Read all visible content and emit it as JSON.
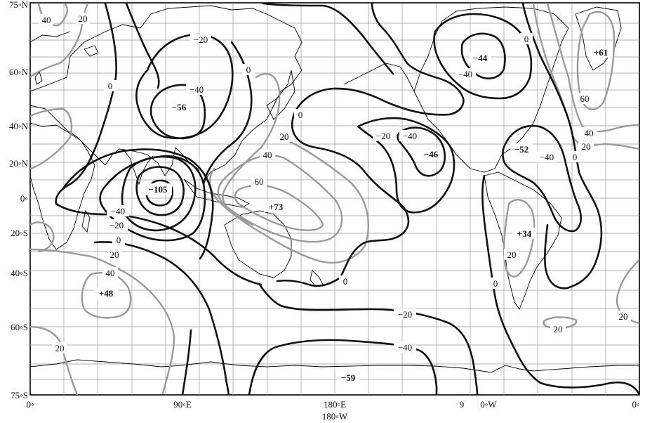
{
  "axes": {
    "y_ticks": [
      "75◦N",
      "60◦N",
      "40◦N",
      "20◦N",
      "0◦",
      "20◦S",
      "40◦S",
      "60◦S",
      "75◦S"
    ],
    "x_ticks": [
      "0◦",
      "90◦E",
      "180◦E",
      "9",
      "0◦W",
      "0◦"
    ],
    "x_sub_tick": "180◦W"
  },
  "contour_labels": {
    "l40_nw": "40",
    "l20_nw": "20",
    "lm20_asia": "−20",
    "l0_asia": "0",
    "lm40_siberia": "−40",
    "l0_pacn": "0",
    "l0_japan": "0",
    "l20_japan": "20",
    "l40_pac": "40",
    "l60_pac": "60",
    "lm20_pac": "−20",
    "lm40_pac": "−40",
    "l0_na": "0",
    "lm40_na": "−40",
    "l60_atl": "60",
    "l40_atl": "40",
    "l20_atl": "20",
    "l0_atl": "0",
    "lm40_atl": "−40",
    "lm40_io": "−40",
    "lm20_io": "−20",
    "l0_io": "0",
    "l20_io": "20",
    "l40_io": "40",
    "l20_sw": "20",
    "l0_sp": "0",
    "lm20_so": "−20",
    "lm40_so": "−40",
    "l0_sa": "0",
    "l20_sa": "20",
    "l20_satl": "20",
    "l20_se": "20"
  },
  "extrema": {
    "e_siberia": "−56",
    "e_io": "−105",
    "e_pac": "+73",
    "e_aleut": "−46",
    "e_na": "−44",
    "e_atl": "+61",
    "e_natl": "−52",
    "e_sa": "+34",
    "e_sio": "+48",
    "e_so": "−59"
  }
}
